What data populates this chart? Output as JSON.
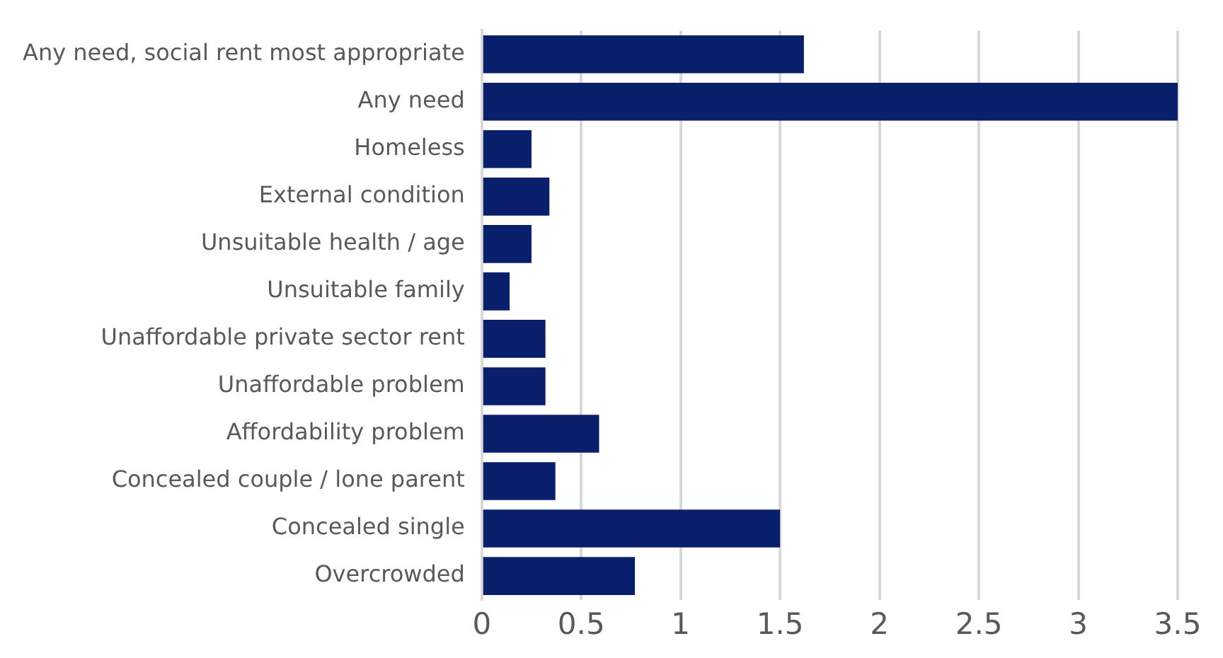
{
  "chart_data": {
    "type": "bar",
    "orientation": "horizontal",
    "categories": [
      "Any need, social rent most appropriate",
      "Any need",
      "Homeless",
      "External condition",
      "Unsuitable health / age",
      "Unsuitable family",
      "Unaffordable private sector rent",
      "Unaffordable problem",
      "Affordability problem",
      "Concealed couple / lone parent",
      "Concealed single",
      "Overcrowded"
    ],
    "values": [
      1.62,
      3.5,
      0.25,
      0.34,
      0.25,
      0.14,
      0.32,
      0.32,
      0.59,
      0.37,
      1.5,
      0.77
    ],
    "color": "#0a1f6b",
    "xlim": [
      0,
      3.5
    ],
    "xticks": [
      0,
      0.5,
      1,
      1.5,
      2,
      2.5,
      3,
      3.5
    ],
    "grid": "x",
    "legend": false
  }
}
